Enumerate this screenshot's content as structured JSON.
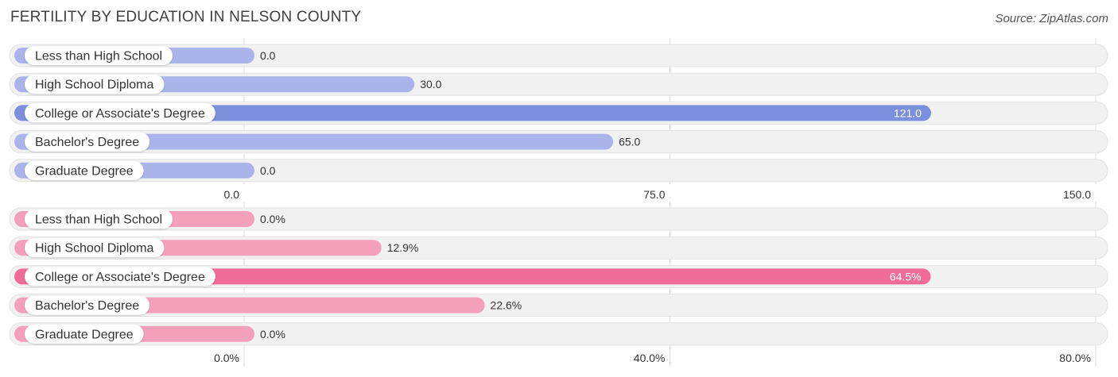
{
  "title": "FERTILITY BY EDUCATION IN NELSON COUNTY",
  "source": "Source: ZipAtlas.com",
  "chart_data": [
    {
      "type": "bar",
      "orientation": "horizontal",
      "categories": [
        "Less than High School",
        "High School Diploma",
        "College or Associate's Degree",
        "Bachelor's Degree",
        "Graduate Degree"
      ],
      "values": [
        0.0,
        30.0,
        121.0,
        65.0,
        0.0
      ],
      "value_labels": [
        "0.0",
        "30.0",
        "121.0",
        "65.0",
        "0.0"
      ],
      "xlim": [
        0,
        150
      ],
      "ticks": [
        0,
        75,
        150
      ],
      "tick_labels": [
        "0.0",
        "75.0",
        "150.0"
      ],
      "grid": true,
      "highlight_index": 2,
      "colors": {
        "bar": "#aab4ea",
        "highlight": "#7b8fdd",
        "track": "#efefef"
      }
    },
    {
      "type": "bar",
      "orientation": "horizontal",
      "categories": [
        "Less than High School",
        "High School Diploma",
        "College or Associate's Degree",
        "Bachelor's Degree",
        "Graduate Degree"
      ],
      "values": [
        0.0,
        12.9,
        64.5,
        22.6,
        0.0
      ],
      "value_labels": [
        "0.0%",
        "12.9%",
        "64.5%",
        "22.6%",
        "0.0%"
      ],
      "xlim": [
        0,
        80
      ],
      "ticks": [
        0,
        40,
        80
      ],
      "tick_labels": [
        "0.0%",
        "40.0%",
        "80.0%"
      ],
      "grid": true,
      "highlight_index": 2,
      "colors": {
        "bar": "#f5a0bb",
        "highlight": "#ef6c98",
        "track": "#efefef"
      }
    }
  ]
}
